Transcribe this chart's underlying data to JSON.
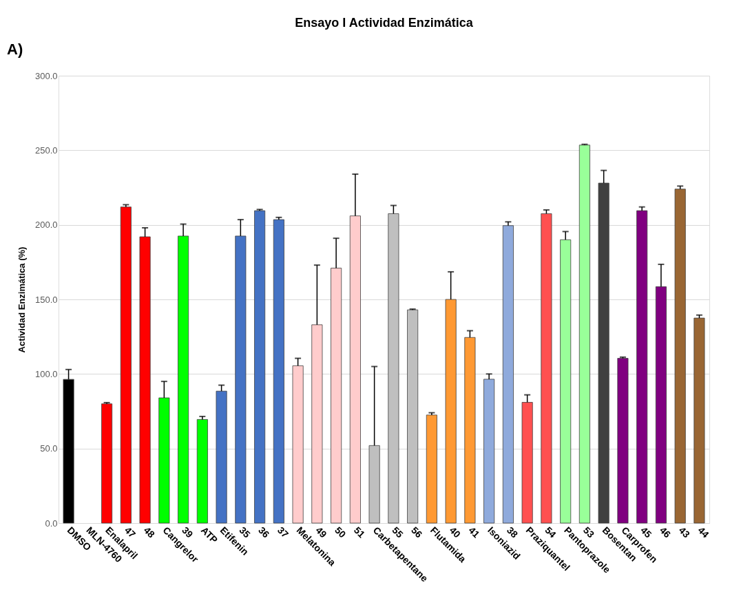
{
  "chart_data": {
    "type": "bar",
    "title": "Ensayo I Actividad Enzimática",
    "ylabel": "Actividad Enzimática (%)",
    "annotations": [
      "A)"
    ],
    "categories": [
      "DMSO",
      "MLN-4760",
      "Enalapril",
      "47",
      "48",
      "Cangrelor",
      "39",
      "ATP",
      "Etifenin",
      "35",
      "36",
      "37",
      "Melatonina",
      "49",
      "50",
      "51",
      "Carbetapentane",
      "55",
      "56",
      "Flutamida",
      "40",
      "41",
      "Isoniazid",
      "38",
      "Praziquantel",
      "54",
      "Pantoprazole",
      "53",
      "Bosentan",
      "Carprofen",
      "45",
      "46",
      "43",
      "44"
    ],
    "values": [
      96.4,
      null,
      80,
      212,
      192,
      84,
      192.5,
      69.5,
      88.5,
      192.5,
      209.5,
      203.5,
      105.5,
      133,
      171,
      206,
      52,
      207.5,
      143,
      72.5,
      150,
      124.5,
      96.5,
      199.5,
      81,
      207.5,
      190,
      253.5,
      228,
      110.5,
      209.5,
      158.5,
      224,
      137.5
    ],
    "errors": [
      [
        96.4,
        103
      ],
      null,
      [
        80,
        80.8
      ],
      [
        212,
        213.5
      ],
      [
        192,
        198
      ],
      [
        84,
        95
      ],
      [
        192.5,
        200.5
      ],
      [
        69.5,
        71.5
      ],
      [
        88.5,
        92.5
      ],
      [
        192.5,
        203.5
      ],
      [
        209.5,
        210.3
      ],
      [
        203.5,
        205
      ],
      [
        105.5,
        110.5
      ],
      [
        133,
        173
      ],
      [
        171,
        191
      ],
      [
        206,
        234
      ],
      [
        52,
        105
      ],
      [
        207.5,
        213
      ],
      [
        143,
        143.5
      ],
      [
        72.5,
        74
      ],
      [
        150,
        168.5
      ],
      [
        124.5,
        129
      ],
      [
        96.5,
        100
      ],
      [
        199.5,
        202
      ],
      [
        81,
        86
      ],
      [
        207.5,
        210
      ],
      [
        190,
        195.5
      ],
      [
        253.5,
        254
      ],
      [
        228,
        236.5
      ],
      [
        110.5,
        111.3
      ],
      [
        209.5,
        212
      ],
      [
        158.5,
        173.5
      ],
      [
        224,
        226
      ],
      [
        137.5,
        139.5
      ]
    ],
    "colors": [
      "#000000",
      "#ff0000",
      "#ff0000",
      "#ff0000",
      "#ff0000",
      "#00ff00",
      "#00ff00",
      "#00ff00",
      "#4472c4",
      "#4472c4",
      "#4472c4",
      "#4472c4",
      "#ffcccc",
      "#ffcccc",
      "#ffcccc",
      "#ffcccc",
      "#bfbfbf",
      "#bfbfbf",
      "#bfbfbf",
      "#ff9933",
      "#ff9933",
      "#ff9933",
      "#8faadc",
      "#8faadc",
      "#ff5050",
      "#ff5050",
      "#99ff99",
      "#99ff99",
      "#404040",
      "#800080",
      "#800080",
      "#800080",
      "#996633",
      "#996633"
    ],
    "ylim": [
      0,
      300
    ],
    "yticks": [
      {
        "value": 0,
        "label": "0.0"
      },
      {
        "value": 50,
        "label": "50.0"
      },
      {
        "value": 100,
        "label": "100.0"
      },
      {
        "value": 150,
        "label": "150.0"
      },
      {
        "value": 200,
        "label": "200.0"
      },
      {
        "value": 250,
        "label": "250.0"
      },
      {
        "value": 300,
        "label": "300.0"
      }
    ],
    "grid": "y"
  }
}
